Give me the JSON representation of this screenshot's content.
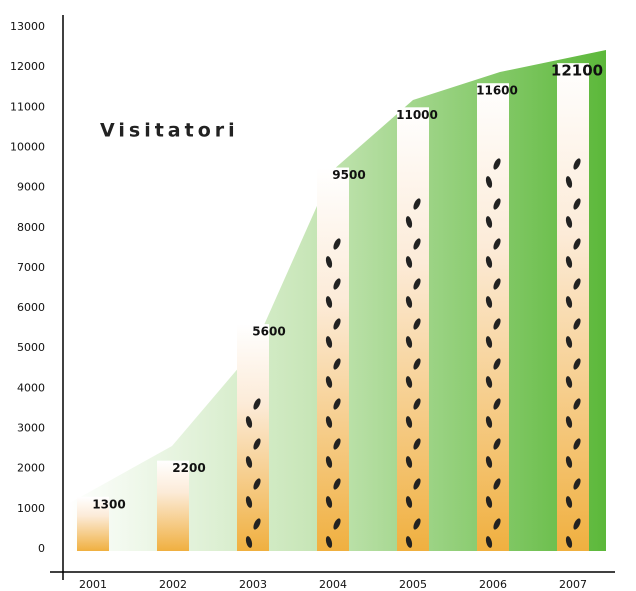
{
  "chart_data": {
    "type": "bar",
    "title": "Visitatori",
    "categories": [
      "2001",
      "2002",
      "2003",
      "2004",
      "2005",
      "2006",
      "2007"
    ],
    "values": [
      1300,
      2200,
      5600,
      9500,
      11000,
      11600,
      12100
    ],
    "ylim": [
      0,
      13000
    ],
    "yticks": [
      0,
      1000,
      2000,
      3000,
      4000,
      5000,
      6000,
      7000,
      8000,
      9000,
      10000,
      11000,
      12000,
      13000
    ],
    "color": "#f0b64a"
  }
}
